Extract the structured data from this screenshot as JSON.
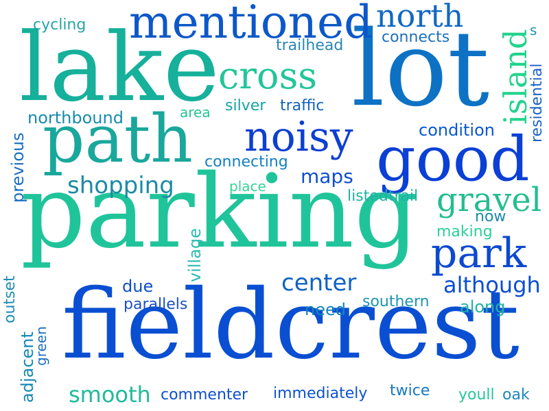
{
  "words": [
    {
      "id": "fieldcrest",
      "text": "fieldcrest",
      "color": "#0a4fd2"
    },
    {
      "id": "parking",
      "text": "parking",
      "color": "#20c49a"
    },
    {
      "id": "lake",
      "text": "lake",
      "color": "#16b09b"
    },
    {
      "id": "lot",
      "text": "lot",
      "color": "#0d72c4"
    },
    {
      "id": "path",
      "text": "path",
      "color": "#1aa79c"
    },
    {
      "id": "good",
      "text": "good",
      "color": "#0b3fd6"
    },
    {
      "id": "mentioned",
      "text": "mentioned",
      "color": "#0c58c8"
    },
    {
      "id": "cross",
      "text": "cross",
      "color": "#22c59a"
    },
    {
      "id": "noisy",
      "text": "noisy",
      "color": "#0d3fd2"
    },
    {
      "id": "park",
      "text": "park",
      "color": "#0d49d0"
    },
    {
      "id": "gravel",
      "text": "gravel",
      "color": "#22be8f"
    },
    {
      "id": "north",
      "text": "north",
      "color": "#1069c2"
    },
    {
      "id": "island",
      "text": "island",
      "color": "#22d38d"
    },
    {
      "id": "shopping",
      "text": "shopping",
      "color": "#1a8ba5"
    },
    {
      "id": "center",
      "text": "center",
      "color": "#0e62c5"
    },
    {
      "id": "although",
      "text": "although",
      "color": "#0b4ed1"
    },
    {
      "id": "smooth",
      "text": "smooth",
      "color": "#20bb99"
    },
    {
      "id": "maps",
      "text": "maps",
      "color": "#0f4fcc"
    },
    {
      "id": "connecting",
      "text": "connecting",
      "color": "#117fc0"
    },
    {
      "id": "condition",
      "text": "condition",
      "color": "#0b57cf"
    },
    {
      "id": "residential",
      "text": "residential",
      "color": "#1a62c8"
    },
    {
      "id": "northbound",
      "text": "northbound",
      "color": "#178bb0"
    },
    {
      "id": "silver",
      "text": "silver",
      "color": "#16a3a2"
    },
    {
      "id": "traffic",
      "text": "traffic",
      "color": "#1163c0"
    },
    {
      "id": "area",
      "text": "area",
      "color": "#24c592"
    },
    {
      "id": "trailhead",
      "text": "trailhead",
      "color": "#2a86b4"
    },
    {
      "id": "connects",
      "text": "connects",
      "color": "#1c6fbc"
    },
    {
      "id": "cycling",
      "text": "cycling",
      "color": "#27a5a6"
    },
    {
      "id": "s",
      "text": "s",
      "color": "#1f8fba"
    },
    {
      "id": "previous",
      "text": "previous",
      "color": "#1a6fc0"
    },
    {
      "id": "place",
      "text": "place",
      "color": "#35d39a"
    },
    {
      "id": "listedtrail",
      "text": "listedtrail",
      "color": "#23b0a6"
    },
    {
      "id": "making",
      "text": "making",
      "color": "#2bd09a"
    },
    {
      "id": "now",
      "text": "now",
      "color": "#1a8ab0"
    },
    {
      "id": "village",
      "text": "village",
      "color": "#2cbcb0"
    },
    {
      "id": "due",
      "text": "due",
      "color": "#0e4fc8"
    },
    {
      "id": "parallels",
      "text": "parallels",
      "color": "#1a4fc4"
    },
    {
      "id": "need",
      "text": "need",
      "color": "#1585bb"
    },
    {
      "id": "southern",
      "text": "southern",
      "color": "#1d95b4"
    },
    {
      "id": "along",
      "text": "along",
      "color": "#20b3a5"
    },
    {
      "id": "outset",
      "text": "outset",
      "color": "#1e8db6"
    },
    {
      "id": "green",
      "text": "green",
      "color": "#1d6fbf"
    },
    {
      "id": "adjacent",
      "text": "adjacent",
      "color": "#1587b5"
    },
    {
      "id": "commenter",
      "text": "commenter",
      "color": "#0f4fcb"
    },
    {
      "id": "immediately",
      "text": "immediately",
      "color": "#0c52cf"
    },
    {
      "id": "twice",
      "text": "twice",
      "color": "#1378c1"
    },
    {
      "id": "youll",
      "text": "youll",
      "color": "#26c69c"
    },
    {
      "id": "oak",
      "text": "oak",
      "color": "#1d86b9"
    }
  ]
}
